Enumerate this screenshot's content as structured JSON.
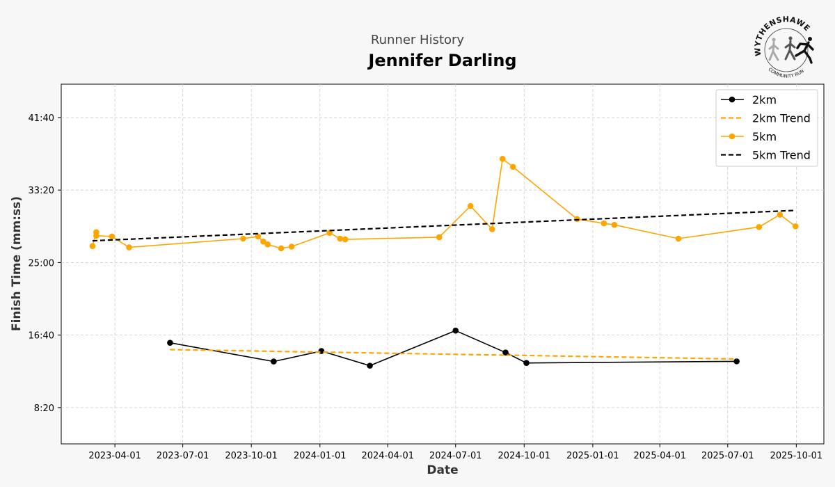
{
  "chart_data": {
    "type": "line",
    "subtitle": "Runner History",
    "title": "Jennifer Darling",
    "xlabel": "Date",
    "ylabel": "Finish Time (mm:ss)",
    "x_range": [
      "2023-01-19",
      "2025-11-07"
    ],
    "y_range_seconds": [
      250,
      2730
    ],
    "grid": true,
    "legend_position": "top-right",
    "x_ticks": [
      "2023-04-01",
      "2023-07-01",
      "2023-10-01",
      "2024-01-01",
      "2024-04-01",
      "2024-07-01",
      "2024-10-01",
      "2025-01-01",
      "2025-04-01",
      "2025-07-01",
      "2025-10-01"
    ],
    "y_ticks": [
      {
        "seconds": 500,
        "label": "8:20"
      },
      {
        "seconds": 1000,
        "label": "16:40"
      },
      {
        "seconds": 1500,
        "label": "25:00"
      },
      {
        "seconds": 2000,
        "label": "33:20"
      },
      {
        "seconds": 2500,
        "label": "41:40"
      }
    ],
    "series": [
      {
        "name": "2km",
        "kind": "line-markers",
        "color": "#000000",
        "points": [
          {
            "date": "2023-06-14",
            "seconds": 947
          },
          {
            "date": "2023-10-31",
            "seconds": 818
          },
          {
            "date": "2024-01-03",
            "seconds": 890
          },
          {
            "date": "2024-03-08",
            "seconds": 789
          },
          {
            "date": "2024-07-01",
            "seconds": 1031
          },
          {
            "date": "2024-09-06",
            "seconds": 880
          },
          {
            "date": "2024-10-04",
            "seconds": 808
          },
          {
            "date": "2025-07-13",
            "seconds": 819
          }
        ]
      },
      {
        "name": "2km Trend",
        "kind": "dashed",
        "color": "#FFA500",
        "points": [
          {
            "date": "2023-06-14",
            "seconds": 900
          },
          {
            "date": "2025-07-13",
            "seconds": 835
          }
        ]
      },
      {
        "name": "5km",
        "kind": "line-markers",
        "color": "#FFA500",
        "points": [
          {
            "date": "2023-03-02",
            "seconds": 1614
          },
          {
            "date": "2023-03-07",
            "seconds": 1710
          },
          {
            "date": "2023-03-07",
            "seconds": 1685
          },
          {
            "date": "2023-03-28",
            "seconds": 1680
          },
          {
            "date": "2023-04-20",
            "seconds": 1605
          },
          {
            "date": "2023-09-20",
            "seconds": 1665
          },
          {
            "date": "2023-10-10",
            "seconds": 1680
          },
          {
            "date": "2023-10-17",
            "seconds": 1645
          },
          {
            "date": "2023-10-23",
            "seconds": 1625
          },
          {
            "date": "2023-11-10",
            "seconds": 1598
          },
          {
            "date": "2023-11-24",
            "seconds": 1610
          },
          {
            "date": "2024-01-14",
            "seconds": 1705
          },
          {
            "date": "2024-01-28",
            "seconds": 1665
          },
          {
            "date": "2024-02-04",
            "seconds": 1660
          },
          {
            "date": "2024-06-09",
            "seconds": 1675
          },
          {
            "date": "2024-07-21",
            "seconds": 1890
          },
          {
            "date": "2024-08-19",
            "seconds": 1730
          },
          {
            "date": "2024-09-02",
            "seconds": 2215
          },
          {
            "date": "2024-09-16",
            "seconds": 2160
          },
          {
            "date": "2024-12-11",
            "seconds": 1800
          },
          {
            "date": "2025-01-16",
            "seconds": 1770
          },
          {
            "date": "2025-01-30",
            "seconds": 1760
          },
          {
            "date": "2025-04-26",
            "seconds": 1665
          },
          {
            "date": "2025-08-12",
            "seconds": 1745
          },
          {
            "date": "2025-09-09",
            "seconds": 1830
          },
          {
            "date": "2025-09-30",
            "seconds": 1750
          }
        ]
      },
      {
        "name": "5km Trend",
        "kind": "dashed",
        "color": "#000000",
        "points": [
          {
            "date": "2023-03-02",
            "seconds": 1650
          },
          {
            "date": "2025-09-30",
            "seconds": 1860
          }
        ]
      }
    ]
  },
  "logo": {
    "name": "WYTHENSHAWE",
    "tagline": "COMMUNITY RUN"
  }
}
